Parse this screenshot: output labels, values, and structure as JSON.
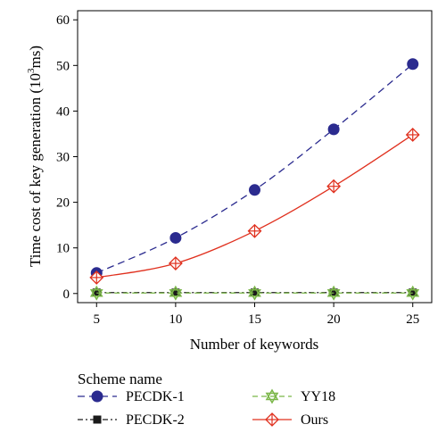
{
  "chart_data": {
    "type": "line",
    "xlabel": "Number of keywords",
    "ylabel_main": "Time cost of key generation (10",
    "ylabel_exp": "3",
    "ylabel_unit": "ms)",
    "x": [
      5,
      10,
      15,
      20,
      25
    ],
    "xlim": [
      3.8,
      26.2
    ],
    "ylim": [
      -2,
      62
    ],
    "xticks": [
      "5",
      "10",
      "15",
      "20",
      "25"
    ],
    "yticks": [
      "0",
      "10",
      "20",
      "30",
      "40",
      "50",
      "60"
    ],
    "grid": false,
    "legend_title": "Scheme name",
    "legend_position": "bottom",
    "series": [
      {
        "name": "PECDK-1",
        "values": [
          4.5,
          12.2,
          22.7,
          36.0,
          50.3
        ],
        "color": "#2b2b8f",
        "marker": "circle",
        "dash": "8,5",
        "smooth": true
      },
      {
        "name": "PECDK-2",
        "values": [
          0.2,
          0.2,
          0.2,
          0.2,
          0.2
        ],
        "color": "#1a1a1a",
        "marker": "square",
        "dash": "6,3,2,3",
        "smooth": false
      },
      {
        "name": "YY18",
        "values": [
          0.1,
          0.1,
          0.1,
          0.1,
          0.1
        ],
        "color": "#7ab648",
        "marker": "star",
        "dash": "6,4",
        "smooth": false
      },
      {
        "name": "Ours",
        "values": [
          3.5,
          6.6,
          13.7,
          23.5,
          34.8
        ],
        "color": "#e0301e",
        "marker": "diamond",
        "dash": "",
        "smooth": true
      }
    ]
  }
}
